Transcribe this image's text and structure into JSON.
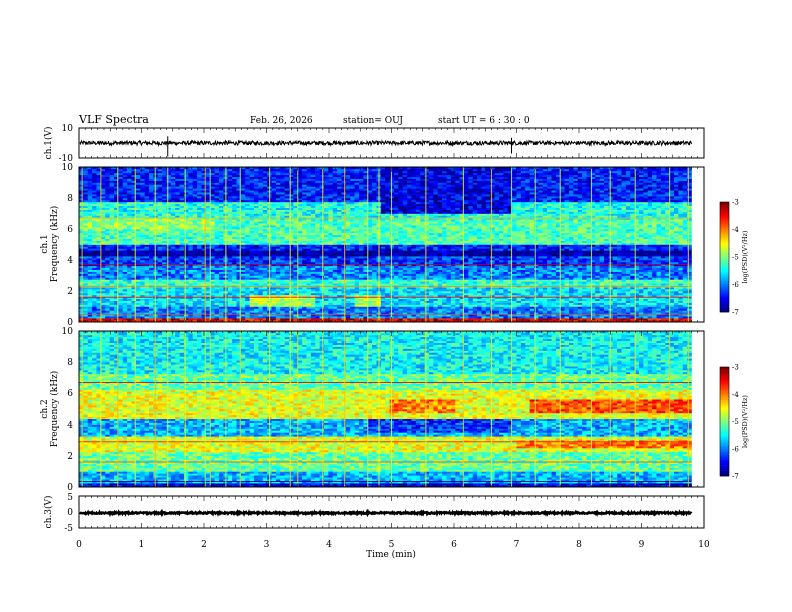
{
  "header": {
    "title": "VLF Spectra",
    "date": "Feb. 26, 2026",
    "station": "station= OUJ",
    "start": "start  UT =   6  : 30 : 0"
  },
  "chart_data": [
    {
      "type": "line",
      "name": "ch1-waveform",
      "ylabel": "ch.1(V)",
      "ylim": [
        -10,
        10
      ],
      "y_ticks": [
        "10",
        "-10"
      ],
      "xlim": [
        0,
        10
      ],
      "level": 0,
      "noise_amplitude": 1.4,
      "spikes": [
        {
          "t": 1.42,
          "amplitude": 9
        },
        {
          "t": 6.92,
          "amplitude": 7
        }
      ],
      "line_end": 9.8
    },
    {
      "type": "heatmap",
      "name": "ch1-spectrogram",
      "ylabel": "ch.1\nFrequency (kHz)",
      "ylim": [
        0,
        10
      ],
      "y_ticks": [
        "0",
        "2",
        "4",
        "6",
        "8",
        "10"
      ],
      "xlim": [
        0,
        10
      ],
      "data_end": 9.8,
      "colorbar": {
        "label": "log(PSD)(V²/Hz)",
        "range": [
          -7,
          -3
        ],
        "ticks": [
          "-3",
          "-4",
          "-5",
          "-6",
          "-7"
        ]
      },
      "background_log_psd": -6.3,
      "bands": [
        {
          "f": [
            0.0,
            0.3
          ],
          "log_psd": -3.4
        },
        {
          "f": [
            0.3,
            1.0
          ],
          "log_psd": -6.0
        },
        {
          "f": [
            1.0,
            2.2
          ],
          "log_psd": -5.6
        },
        {
          "f": [
            2.2,
            2.8
          ],
          "log_psd": -5.3
        },
        {
          "f": [
            2.8,
            3.6
          ],
          "log_psd": -6.0
        },
        {
          "f": [
            3.6,
            4.2
          ],
          "log_psd": -6.3
        },
        {
          "f": [
            4.2,
            4.6
          ],
          "log_psd": -6.9
        },
        {
          "f": [
            4.6,
            5.0
          ],
          "log_psd": -6.4
        },
        {
          "f": [
            5.0,
            6.6
          ],
          "log_psd": -5.2
        },
        {
          "f": [
            6.6,
            7.8
          ],
          "log_psd": -5.4
        },
        {
          "f": [
            7.8,
            10.0
          ],
          "log_psd": -6.4
        }
      ],
      "patches": [
        {
          "t": [
            2.7,
            3.8
          ],
          "f": [
            1.0,
            1.8
          ],
          "log_psd": -4.8
        },
        {
          "t": [
            4.4,
            4.8
          ],
          "f": [
            1.0,
            1.8
          ],
          "log_psd": -4.8
        },
        {
          "t": [
            4.8,
            6.9
          ],
          "f": [
            7.0,
            10.0
          ],
          "log_psd": -6.6
        },
        {
          "t": [
            0.0,
            2.2
          ],
          "f": [
            6.0,
            6.8
          ],
          "log_psd": -4.9
        }
      ],
      "lines_khz": [
        {
          "f": 3.7,
          "log_psd": -3.3
        },
        {
          "f": 1.6,
          "log_psd": -3.5
        },
        {
          "f": 2.3,
          "log_psd": -4.0
        },
        {
          "f": 6.7,
          "log_psd": -4.2
        },
        {
          "f": 0.5,
          "log_psd": -3.8
        }
      ],
      "impulses_min": [
        0.05,
        0.35,
        0.62,
        0.9,
        1.22,
        1.42,
        1.7,
        2.02,
        2.1,
        2.35,
        2.58,
        3.05,
        3.38,
        3.5,
        3.9,
        4.25,
        4.62,
        4.8,
        5.0,
        5.55,
        6.15,
        6.6,
        6.92,
        7.3,
        7.7,
        8.2,
        8.5,
        8.9,
        9.45,
        9.75
      ]
    },
    {
      "type": "heatmap",
      "name": "ch2-spectrogram",
      "ylabel": "ch.2\nFrequency (kHz)",
      "ylim": [
        0,
        10
      ],
      "y_ticks": [
        "0",
        "2",
        "4",
        "6",
        "8",
        "10"
      ],
      "xlim": [
        0,
        10
      ],
      "data_end": 9.8,
      "colorbar": {
        "label": "log(PSD)(V²/Hz)",
        "range": [
          -7,
          -3
        ],
        "ticks": [
          "-3",
          "-4",
          "-5",
          "-6",
          "-7"
        ]
      },
      "background_log_psd": -5.6,
      "bands": [
        {
          "f": [
            0.0,
            0.3
          ],
          "log_psd": -6.6
        },
        {
          "f": [
            0.3,
            1.0
          ],
          "log_psd": -5.8
        },
        {
          "f": [
            1.0,
            2.3
          ],
          "log_psd": -5.1
        },
        {
          "f": [
            2.3,
            3.3
          ],
          "log_psd": -4.6
        },
        {
          "f": [
            3.3,
            4.4
          ],
          "log_psd": -5.8
        },
        {
          "f": [
            4.4,
            6.2
          ],
          "log_psd": -4.6
        },
        {
          "f": [
            6.2,
            7.2
          ],
          "log_psd": -5.1
        },
        {
          "f": [
            7.2,
            10.0
          ],
          "log_psd": -5.5
        }
      ],
      "patches": [
        {
          "t": [
            7.2,
            9.8
          ],
          "f": [
            4.8,
            5.6
          ],
          "log_psd": -3.8
        },
        {
          "t": [
            5.0,
            6.0
          ],
          "f": [
            4.8,
            5.6
          ],
          "log_psd": -4.0
        },
        {
          "t": [
            7.0,
            9.8
          ],
          "f": [
            2.5,
            3.0
          ],
          "log_psd": -4.0
        },
        {
          "t": [
            4.6,
            6.9
          ],
          "f": [
            3.5,
            4.4
          ],
          "log_psd": -6.3
        }
      ],
      "lines_khz": [
        {
          "f": 6.7,
          "log_psd": -3.4
        },
        {
          "f": 2.9,
          "log_psd": -3.6
        },
        {
          "f": 1.6,
          "log_psd": -3.8
        },
        {
          "f": 0.35,
          "log_psd": -7.0
        }
      ],
      "impulses_min": [
        0.05,
        0.35,
        0.62,
        0.9,
        1.22,
        1.42,
        1.7,
        2.02,
        2.1,
        2.35,
        2.58,
        3.05,
        3.38,
        3.5,
        3.9,
        4.25,
        4.62,
        4.8,
        5.0,
        5.55,
        6.15,
        6.6,
        6.92,
        7.3,
        7.7,
        8.2,
        8.5,
        8.9,
        9.45,
        9.75
      ]
    },
    {
      "type": "line",
      "name": "ch3-waveform",
      "ylabel": "ch.3(V)",
      "ylim": [
        -5,
        5
      ],
      "y_ticks": [
        "5",
        "0",
        "-5"
      ],
      "xlim": [
        0,
        10
      ],
      "level": -0.3,
      "noise_amplitude": 0.25,
      "spikes": [],
      "line_end": 9.8
    }
  ],
  "x_axis": {
    "label": "Time (min)",
    "ticks": [
      "0",
      "1",
      "2",
      "3",
      "4",
      "5",
      "6",
      "7",
      "8",
      "9",
      "10"
    ]
  }
}
